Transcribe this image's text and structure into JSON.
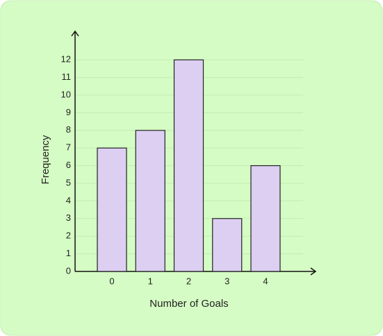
{
  "chart_data": {
    "type": "bar",
    "x_label": "Number of Goals",
    "y_label": "Frequency",
    "categories": [
      "0",
      "1",
      "2",
      "3",
      "4"
    ],
    "values": [
      7,
      8,
      12,
      3,
      6
    ],
    "color": "#dccff2",
    "ylim": [
      0,
      13
    ],
    "yticks": [
      0,
      1,
      2,
      3,
      4,
      5,
      6,
      7,
      8,
      9,
      10,
      11,
      12
    ],
    "grid": true
  }
}
